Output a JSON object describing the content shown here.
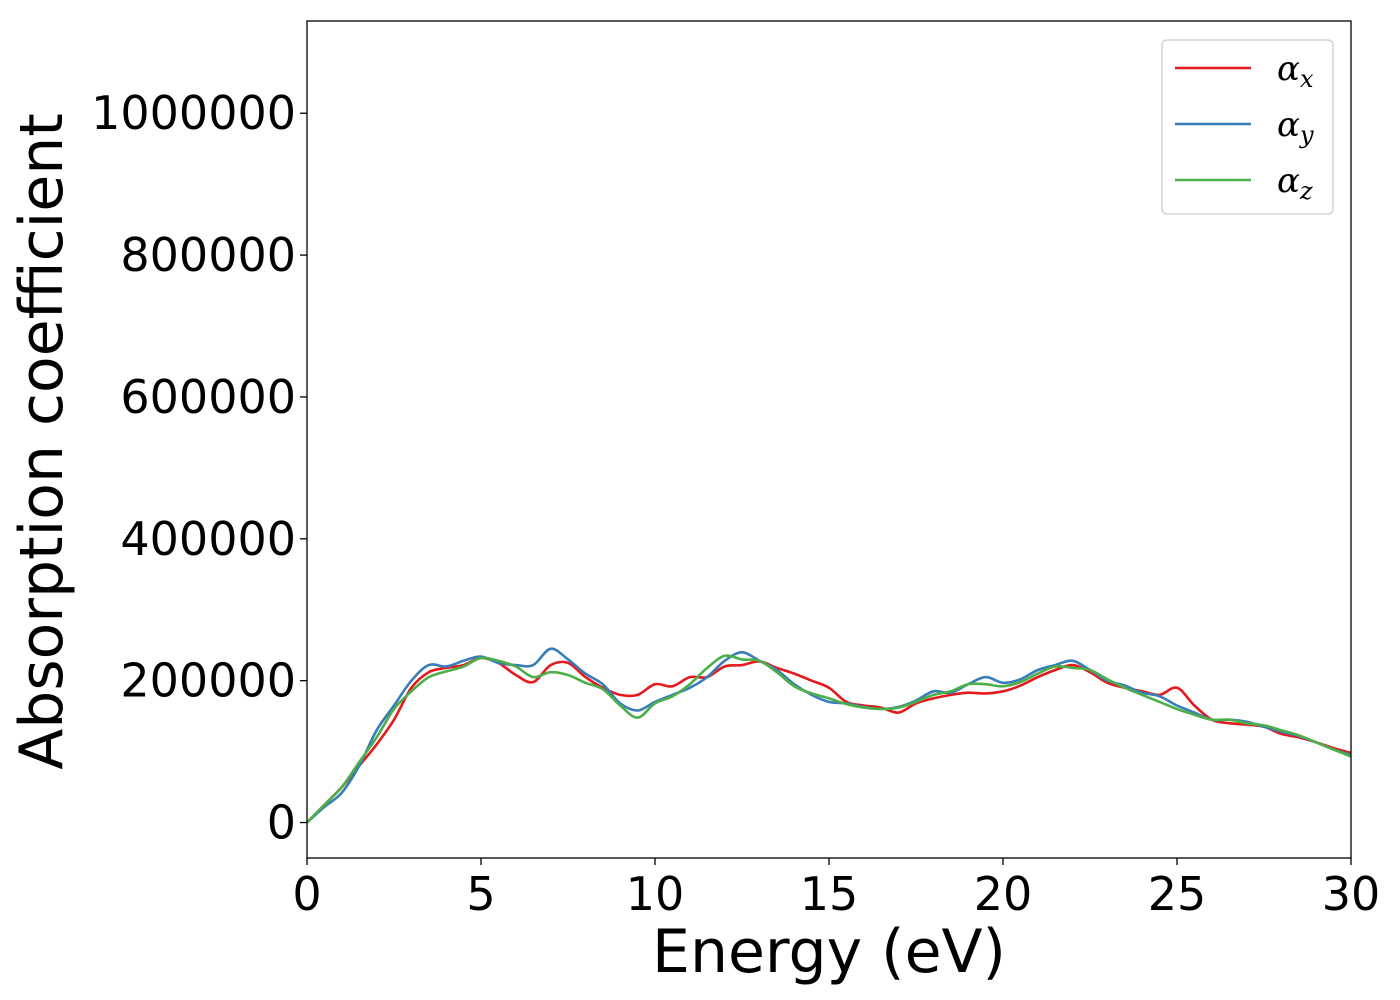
{
  "chart_data": {
    "type": "line",
    "title": "",
    "xlabel": "Energy (eV)",
    "ylabel": "Absorption coefficient",
    "xlim": [
      0,
      30
    ],
    "ylim": [
      -50000,
      1130000
    ],
    "xticks": [
      0,
      5,
      10,
      15,
      20,
      25,
      30
    ],
    "yticks": [
      0,
      200000,
      400000,
      600000,
      800000,
      1000000
    ],
    "grid": false,
    "legend_position": "top-right",
    "series": [
      {
        "name": "α",
        "subscript": "x",
        "color": "#e41a1c",
        "x": [
          0,
          0.5,
          1,
          1.5,
          2,
          2.5,
          3,
          3.5,
          4,
          4.5,
          5,
          5.5,
          6,
          6.5,
          7,
          7.5,
          8,
          8.5,
          9,
          9.5,
          10,
          10.5,
          11,
          11.5,
          12,
          12.5,
          13,
          13.5,
          14,
          14.5,
          15,
          15.5,
          16,
          16.5,
          17,
          17.5,
          18,
          18.5,
          19,
          19.5,
          20,
          20.5,
          21,
          21.5,
          22,
          22.5,
          23,
          23.5,
          24,
          24.5,
          25,
          25.5,
          26,
          26.5,
          27,
          27.5,
          28,
          28.5,
          29,
          29.5,
          30
        ],
        "y": [
          0,
          25000,
          50000,
          80000,
          110000,
          145000,
          190000,
          212000,
          218000,
          222000,
          232000,
          225000,
          208000,
          198000,
          222000,
          225000,
          205000,
          190000,
          180000,
          180000,
          195000,
          192000,
          205000,
          205000,
          220000,
          222000,
          227000,
          218000,
          210000,
          200000,
          190000,
          170000,
          165000,
          162000,
          155000,
          168000,
          175000,
          180000,
          183000,
          182000,
          185000,
          193000,
          205000,
          215000,
          222000,
          212000,
          197000,
          190000,
          185000,
          180000,
          190000,
          165000,
          145000,
          140000,
          138000,
          135000,
          125000,
          120000,
          113000,
          105000,
          98000
        ]
      },
      {
        "name": "α",
        "subscript": "y",
        "color": "#377eb8",
        "x": [
          0,
          0.5,
          1,
          1.5,
          2,
          2.5,
          3,
          3.5,
          4,
          4.5,
          5,
          5.5,
          6,
          6.5,
          7,
          7.5,
          8,
          8.5,
          9,
          9.5,
          10,
          10.5,
          11,
          11.5,
          12,
          12.5,
          13,
          13.5,
          14,
          14.5,
          15,
          15.5,
          16,
          16.5,
          17,
          17.5,
          18,
          18.5,
          19,
          19.5,
          20,
          20.5,
          21,
          21.5,
          22,
          22.5,
          23,
          23.5,
          24,
          24.5,
          25,
          25.5,
          26,
          26.5,
          27,
          27.5,
          28,
          28.5,
          29,
          29.5,
          30
        ],
        "y": [
          0,
          22000,
          42000,
          80000,
          130000,
          165000,
          200000,
          222000,
          220000,
          228000,
          234000,
          225000,
          222000,
          222000,
          245000,
          230000,
          210000,
          195000,
          168000,
          158000,
          170000,
          180000,
          190000,
          205000,
          228000,
          240000,
          228000,
          215000,
          195000,
          180000,
          170000,
          168000,
          163000,
          160000,
          163000,
          172000,
          185000,
          183000,
          195000,
          205000,
          197000,
          202000,
          215000,
          222000,
          228000,
          215000,
          200000,
          193000,
          183000,
          178000,
          165000,
          155000,
          145000,
          145000,
          142000,
          135000,
          128000,
          122000,
          113000,
          103000,
          95000
        ]
      },
      {
        "name": "α",
        "subscript": "z",
        "color": "#4daf4a",
        "x": [
          0,
          0.5,
          1,
          1.5,
          2,
          2.5,
          3,
          3.5,
          4,
          4.5,
          5,
          5.5,
          6,
          6.5,
          7,
          7.5,
          8,
          8.5,
          9,
          9.5,
          10,
          10.5,
          11,
          11.5,
          12,
          12.5,
          13,
          13.5,
          14,
          14.5,
          15,
          15.5,
          16,
          16.5,
          17,
          17.5,
          18,
          18.5,
          19,
          19.5,
          20,
          20.5,
          21,
          21.5,
          22,
          22.5,
          23,
          23.5,
          24,
          24.5,
          25,
          25.5,
          26,
          26.5,
          27,
          27.5,
          28,
          28.5,
          29,
          29.5,
          30
        ],
        "y": [
          0,
          25000,
          50000,
          85000,
          120000,
          160000,
          185000,
          205000,
          213000,
          220000,
          232000,
          228000,
          220000,
          205000,
          212000,
          208000,
          197000,
          188000,
          165000,
          148000,
          168000,
          178000,
          195000,
          218000,
          235000,
          230000,
          228000,
          212000,
          192000,
          182000,
          175000,
          167000,
          162000,
          160000,
          162000,
          170000,
          180000,
          185000,
          195000,
          195000,
          192000,
          198000,
          210000,
          220000,
          218000,
          215000,
          202000,
          190000,
          180000,
          170000,
          160000,
          152000,
          145000,
          145000,
          140000,
          137000,
          130000,
          123000,
          113000,
          103000,
          93000
        ]
      }
    ]
  }
}
